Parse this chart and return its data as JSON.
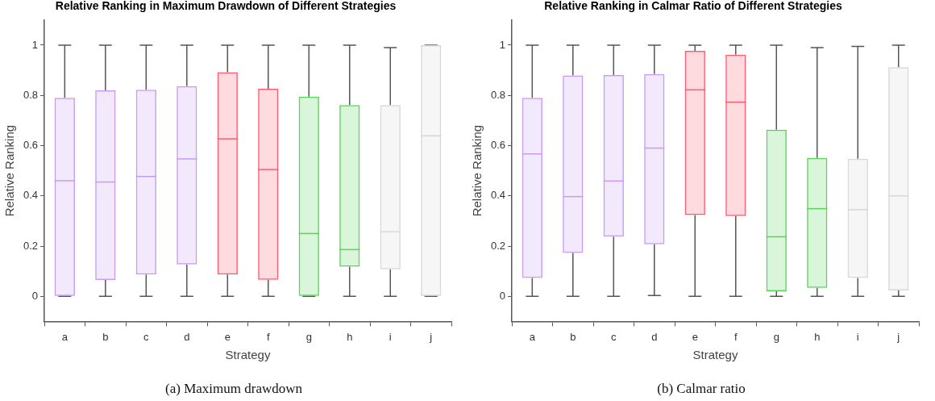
{
  "chart_data": [
    {
      "type": "box",
      "title": "Relative Ranking in Maximum Drawdown of Different Strategies",
      "xlabel": "Strategy",
      "ylabel": "Relative Ranking",
      "annotations": [
        "(a) Maximum drawdown"
      ],
      "categories": [
        "a",
        "b",
        "c",
        "d",
        "e",
        "f",
        "g",
        "h",
        "i",
        "j"
      ],
      "colors": [
        "#c79bf2",
        "#c79bf2",
        "#c79bf2",
        "#c79bf2",
        "#ff5a6e",
        "#ff5a6e",
        "#55d655",
        "#55d655",
        "#d8d8d8",
        "#d8d8d8"
      ],
      "boxes": [
        {
          "low": 0,
          "q1": 0,
          "median": 0.46,
          "q3": 0.79,
          "high": 1
        },
        {
          "low": 0,
          "q1": 0.065,
          "median": 0.455,
          "q3": 0.82,
          "high": 1
        },
        {
          "low": 0,
          "q1": 0.087,
          "median": 0.477,
          "q3": 0.822,
          "high": 1
        },
        {
          "low": 0,
          "q1": 0.127,
          "median": 0.547,
          "q3": 0.837,
          "high": 1
        },
        {
          "low": 0,
          "q1": 0.087,
          "median": 0.627,
          "q3": 0.892,
          "high": 1
        },
        {
          "low": 0,
          "q1": 0.066,
          "median": 0.505,
          "q3": 0.826,
          "high": 1
        },
        {
          "low": 0,
          "q1": 0,
          "median": 0.25,
          "q3": 0.795,
          "high": 1
        },
        {
          "low": 0,
          "q1": 0.118,
          "median": 0.186,
          "q3": 0.761,
          "high": 1
        },
        {
          "low": 0,
          "q1": 0.108,
          "median": 0.257,
          "q3": 0.761,
          "high": 0.99
        },
        {
          "low": 0,
          "q1": 0,
          "median": 0.639,
          "q3": 1,
          "high": 1
        }
      ],
      "ylim": [
        -0.1,
        1.1
      ],
      "yticks": [
        0,
        0.2,
        0.4,
        0.6,
        0.8,
        1
      ],
      "grid": false,
      "legend": false
    },
    {
      "type": "box",
      "title": "Relative Ranking in Calmar Ratio of Different Strategies",
      "xlabel": "Strategy",
      "ylabel": "Relative Ranking",
      "annotations": [
        "(b) Calmar ratio"
      ],
      "categories": [
        "a",
        "b",
        "c",
        "d",
        "e",
        "f",
        "g",
        "h",
        "i",
        "j"
      ],
      "colors": [
        "#c79bf2",
        "#c79bf2",
        "#c79bf2",
        "#c79bf2",
        "#ff5a6e",
        "#ff5a6e",
        "#55d655",
        "#55d655",
        "#d8d8d8",
        "#d8d8d8"
      ],
      "boxes": [
        {
          "low": 0,
          "q1": 0.073,
          "median": 0.567,
          "q3": 0.79,
          "high": 1
        },
        {
          "low": 0,
          "q1": 0.173,
          "median": 0.397,
          "q3": 0.879,
          "high": 1
        },
        {
          "low": 0,
          "q1": 0.238,
          "median": 0.459,
          "q3": 0.881,
          "high": 1
        },
        {
          "low": 0.003,
          "q1": 0.207,
          "median": 0.59,
          "q3": 0.885,
          "high": 1
        },
        {
          "low": 0,
          "q1": 0.324,
          "median": 0.822,
          "q3": 0.977,
          "high": 1
        },
        {
          "low": 0,
          "q1": 0.32,
          "median": 0.773,
          "q3": 0.962,
          "high": 1
        },
        {
          "low": 0,
          "q1": 0.02,
          "median": 0.237,
          "q3": 0.663,
          "high": 1
        },
        {
          "low": 0,
          "q1": 0.034,
          "median": 0.349,
          "q3": 0.551,
          "high": 0.99
        },
        {
          "low": 0,
          "q1": 0.073,
          "median": 0.345,
          "q3": 0.548,
          "high": 0.995
        },
        {
          "low": 0,
          "q1": 0.023,
          "median": 0.4,
          "q3": 0.912,
          "high": 1
        }
      ],
      "ylim": [
        -0.1,
        1.1
      ],
      "yticks": [
        0,
        0.2,
        0.4,
        0.6,
        0.8,
        1
      ],
      "grid": false,
      "legend": false
    }
  ]
}
